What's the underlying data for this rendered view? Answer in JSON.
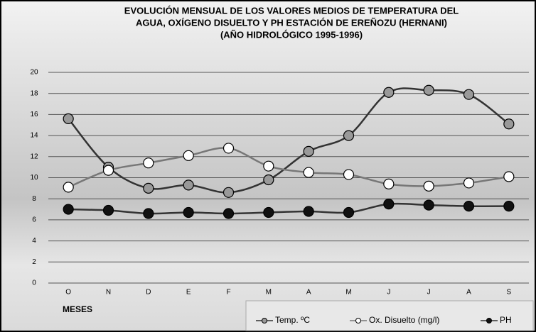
{
  "chart_data": {
    "type": "line",
    "title": [
      "EVOLUCIÓN MENSUAL DE LOS VALORES MEDIOS DE TEMPERATURA DEL",
      "AGUA, OXÍGENO DISUELTO Y PH  ESTACIÓN DE EREÑOZU (HERNANI)",
      "(AÑO HIDROLÓGICO 1995-1996)"
    ],
    "x_label": "MESES",
    "categories": [
      "O",
      "N",
      "D",
      "E",
      "F",
      "M",
      "A",
      "M",
      "J",
      "J",
      "A",
      "S"
    ],
    "series": [
      {
        "name": "Temp. ºC",
        "color": "#999999",
        "values": [
          15.6,
          11,
          9,
          9.3,
          8.6,
          9.8,
          12.5,
          14,
          18.1,
          18.3,
          17.9,
          15.1
        ]
      },
      {
        "name": "Ox. Disuelto (mg/l)",
        "color": "#ffffff",
        "values": [
          9.1,
          10.7,
          11.4,
          12.1,
          12.8,
          11.1,
          10.5,
          10.3,
          9.4,
          9.2,
          9.5,
          10.1
        ]
      },
      {
        "name": "PH",
        "color": "#111111",
        "values": [
          7,
          6.9,
          6.6,
          6.7,
          6.6,
          6.7,
          6.8,
          6.7,
          7.5,
          7.4,
          7.3,
          7.3
        ]
      }
    ],
    "ylim": [
      0,
      20
    ],
    "yticks": [
      0,
      2,
      4,
      6,
      8,
      10,
      12,
      14,
      16,
      18,
      20
    ],
    "grid": true
  }
}
